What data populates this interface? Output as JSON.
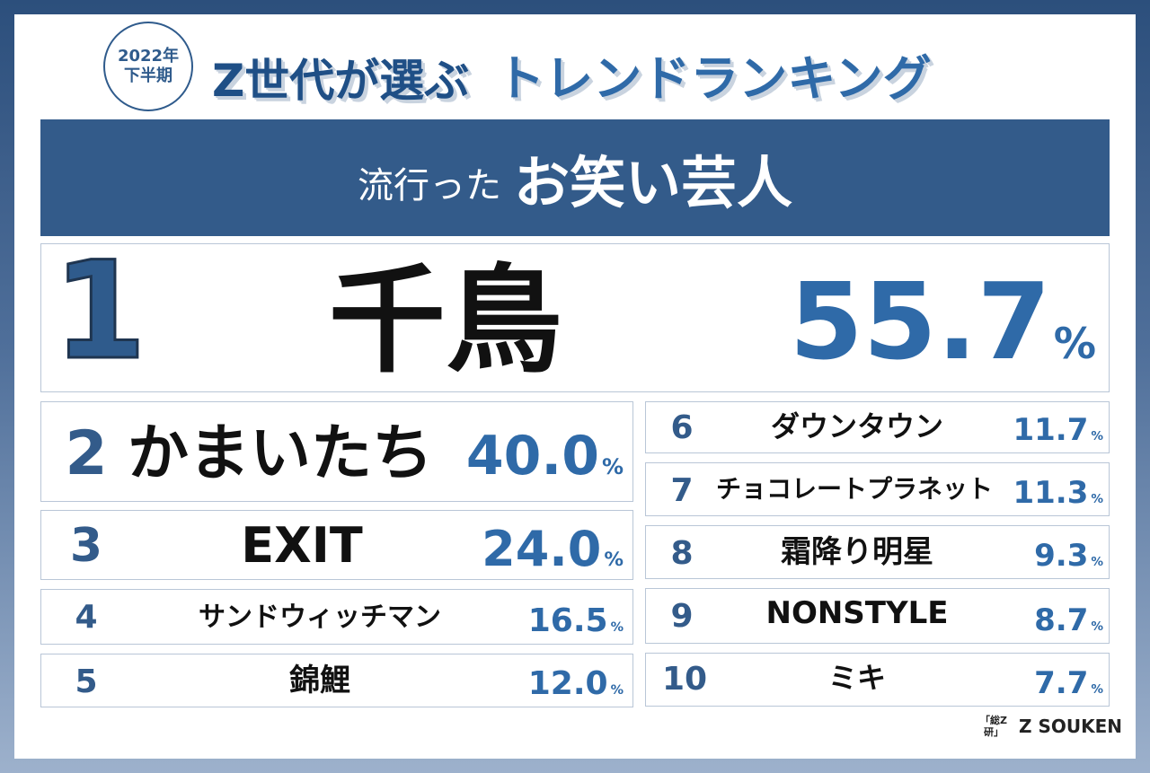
{
  "header": {
    "badge_line1": "2022年",
    "badge_line2": "下半期",
    "title_part1": "Z世代が選ぶ",
    "title_part2": "トレンドランキング"
  },
  "banner": {
    "prefix": "流行った",
    "main": "お笑い芸人"
  },
  "chart_data": {
    "type": "table",
    "unit": "%",
    "rows": [
      {
        "rank": "1",
        "name": "千鳥",
        "value": "55.7"
      },
      {
        "rank": "2",
        "name": "かまいたち",
        "value": "40.0"
      },
      {
        "rank": "3",
        "name": "EXIT",
        "value": "24.0"
      },
      {
        "rank": "4",
        "name": "サンドウィッチマン",
        "value": "16.5"
      },
      {
        "rank": "5",
        "name": "錦鯉",
        "value": "12.0"
      },
      {
        "rank": "6",
        "name": "ダウンタウン",
        "value": "11.7"
      },
      {
        "rank": "7",
        "name": "チョコレートプラネット",
        "value": "11.3"
      },
      {
        "rank": "8",
        "name": "霜降り明星",
        "value": "9.3"
      },
      {
        "rank": "9",
        "name": "NONSTYLE",
        "value": "8.7"
      },
      {
        "rank": "10",
        "name": "ミキ",
        "value": "7.7"
      }
    ]
  },
  "logo": {
    "mark_line1": "「総Z",
    "mark_line2": "研」",
    "text": "Z SOUKEN"
  },
  "colors": {
    "banner": "#335b8a",
    "accent": "#2f6aa8",
    "frame_top": "#2c4f7c"
  }
}
